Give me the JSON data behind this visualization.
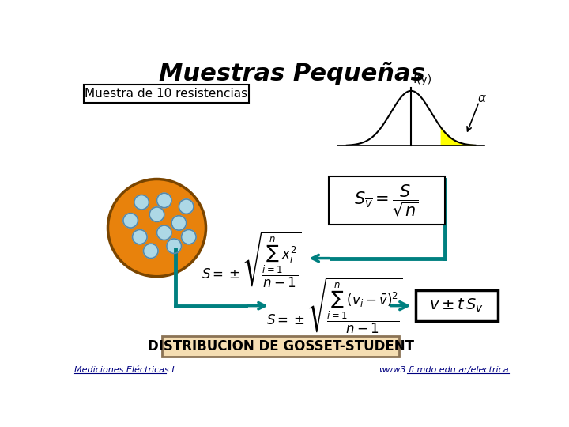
{
  "title": "Muestras Pequeñas",
  "title_fontsize": 22,
  "title_style": "italic",
  "title_weight": "bold",
  "bg_color": "#ffffff",
  "label_sample": "Muestra de 10 resistencias",
  "bottom_text": "DISTRIBUCION DE GOSSET-STUDENT",
  "bottom_bg": "#f5deb3",
  "bottom_border": "#8b7355",
  "footer_left": "Mediciones Eléctricas I",
  "footer_right": "www3.fi.mdo.edu.ar/electrica",
  "teal_color": "#008080",
  "formula1": "$S_{\\overline{v}} = \\dfrac{S}{\\sqrt{n}}$",
  "formula2": "$S = \\pm\\sqrt{\\dfrac{\\sum_{i=1}^{n} x_i^2}{n-1}}$",
  "formula3": "$S = \\pm\\sqrt{\\dfrac{\\sum_{i=1}^{n}(v_i - \\bar{v})^2}{n-1}}$",
  "formula4": "$v \\pm t\\, S_v$",
  "orange_circle_color": "#e8820c",
  "blue_dot_color": "#add8e6",
  "dot_border_color": "#5588aa",
  "alpha_label": "$\\alpha$",
  "fy_label": "f(y)",
  "arrow_color": "#008080"
}
